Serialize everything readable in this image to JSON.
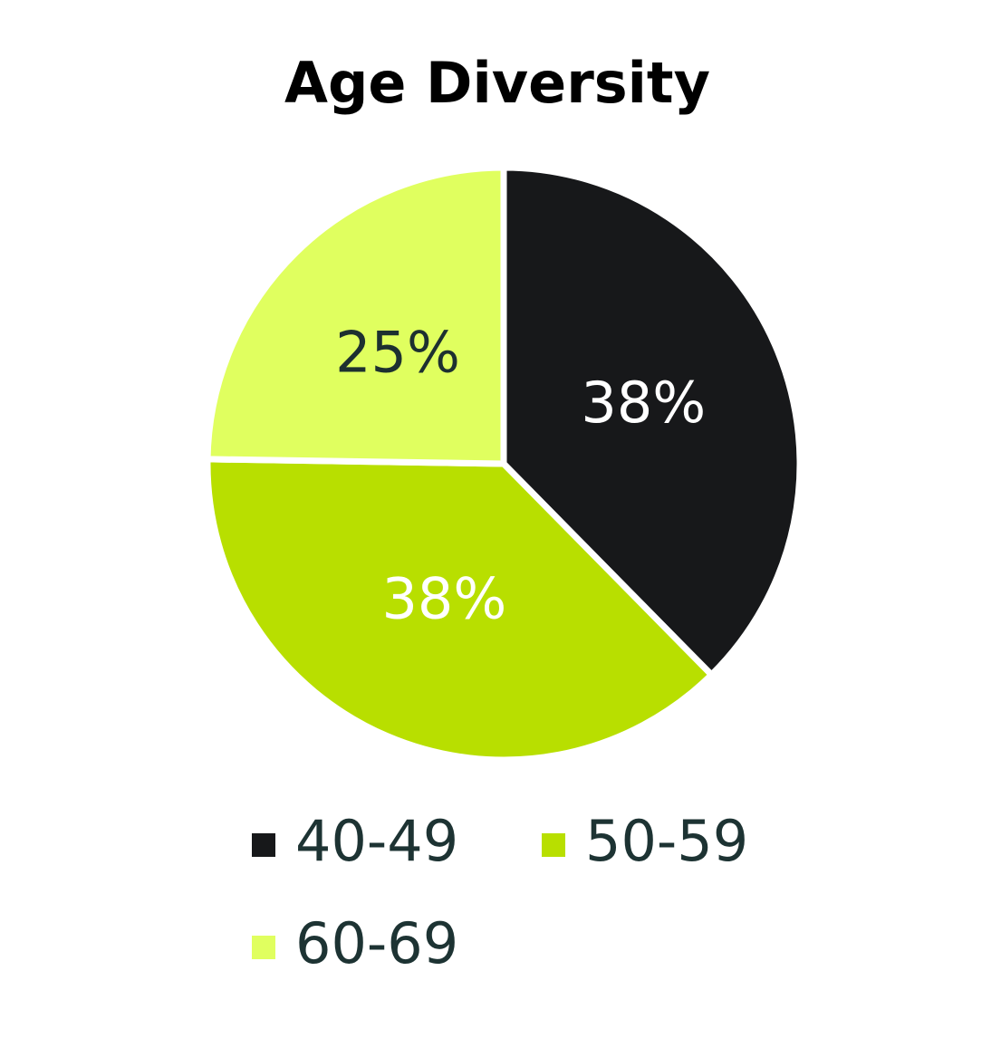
{
  "chart_data": {
    "type": "pie",
    "title": "Age Diversity",
    "categories": [
      "40-49",
      "50-59",
      "60-69"
    ],
    "values": [
      38,
      38,
      25
    ],
    "value_labels": [
      "38%",
      "38%",
      "25%"
    ],
    "colors": [
      "#17181a",
      "#b8df00",
      "#e0ff5f"
    ],
    "legend": "bottom"
  }
}
